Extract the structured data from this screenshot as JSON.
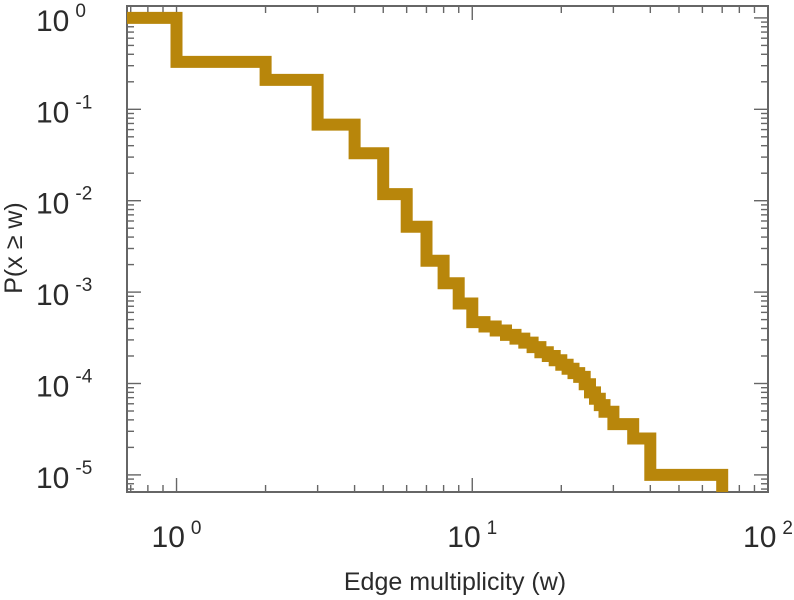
{
  "chart_data": {
    "type": "line",
    "style": "step",
    "xscale": "log",
    "yscale": "log",
    "xlim": [
      0.68,
      100
    ],
    "ylim": [
      6.5e-06,
      1.35
    ],
    "xlabel": "Edge multiplicity (w)",
    "ylabel": "P(x ≥ w)",
    "grid": false,
    "color": "#b8860b",
    "x_ticks": [
      {
        "value": 1,
        "base": "10",
        "exp": "0"
      },
      {
        "value": 10,
        "base": "10",
        "exp": "1"
      },
      {
        "value": 100,
        "base": "10",
        "exp": "2"
      }
    ],
    "y_ticks": [
      {
        "value": 1,
        "base": "10",
        "exp": "0"
      },
      {
        "value": 0.1,
        "base": "10",
        "exp": "-1"
      },
      {
        "value": 0.01,
        "base": "10",
        "exp": "-2"
      },
      {
        "value": 0.001,
        "base": "10",
        "exp": "-3"
      },
      {
        "value": 0.0001,
        "base": "10",
        "exp": "-4"
      },
      {
        "value": 1e-05,
        "base": "10",
        "exp": "-5"
      }
    ],
    "series": [
      {
        "x": [
          0.68,
          1,
          2,
          3,
          4,
          5,
          6,
          7,
          8,
          9,
          10,
          11,
          12,
          13,
          14,
          15,
          16,
          17,
          18,
          19,
          20,
          21,
          22,
          23,
          24,
          25,
          26,
          27,
          28,
          30,
          35,
          40,
          70
        ],
        "y": [
          1,
          0.33,
          0.21,
          0.068,
          0.033,
          0.0118,
          0.0052,
          0.0022,
          0.00125,
          0.00075,
          0.00047,
          0.00042,
          0.00038,
          0.00034,
          0.00031,
          0.00028,
          0.00025,
          0.00022,
          0.0002,
          0.00018,
          0.00016,
          0.000145,
          0.00013,
          0.000118,
          9.8e-05,
          8e-05,
          6.8e-05,
          5.8e-05,
          4.9e-05,
          3.6e-05,
          2.5e-05,
          1e-05,
          6.5e-06
        ]
      }
    ]
  }
}
